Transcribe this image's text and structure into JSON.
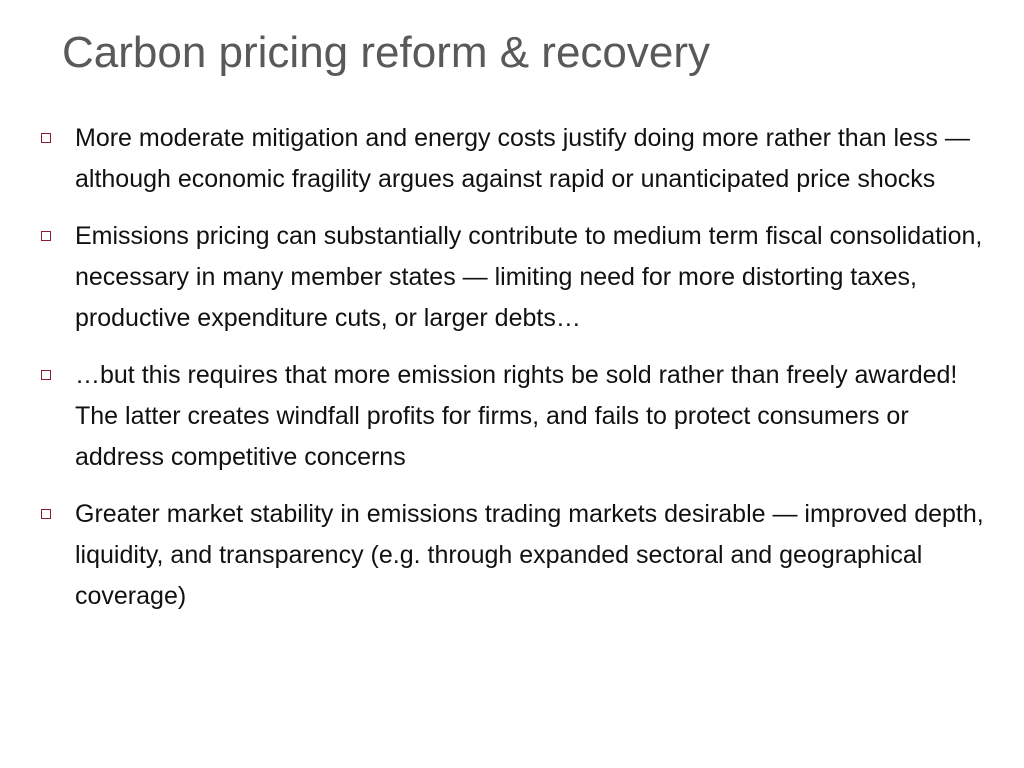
{
  "slide": {
    "title": "Carbon pricing reform & recovery",
    "bullet_marker_icon": "hollow-square-icon",
    "colors": {
      "title": "#595959",
      "body_text": "#111111",
      "bullet_marker": "#8b1d2c",
      "background": "#ffffff"
    },
    "bullets": [
      {
        "text": "More moderate mitigation and energy costs justify doing more rather than less — although economic fragility argues against rapid or unanticipated price shocks"
      },
      {
        "text": "Emissions pricing can substantially contribute to medium term fiscal consolidation, necessary in many member states — limiting need for more distorting taxes, productive expenditure cuts, or larger debts…"
      },
      {
        "text": "…but this requires that more emission rights be sold rather than freely awarded! The latter creates windfall profits for firms, and fails to protect consumers or address competitive concerns"
      },
      {
        "text": "Greater market stability in emissions trading markets desirable — improved depth, liquidity, and transparency (e.g. through expanded sectoral and geographical coverage)"
      }
    ]
  }
}
